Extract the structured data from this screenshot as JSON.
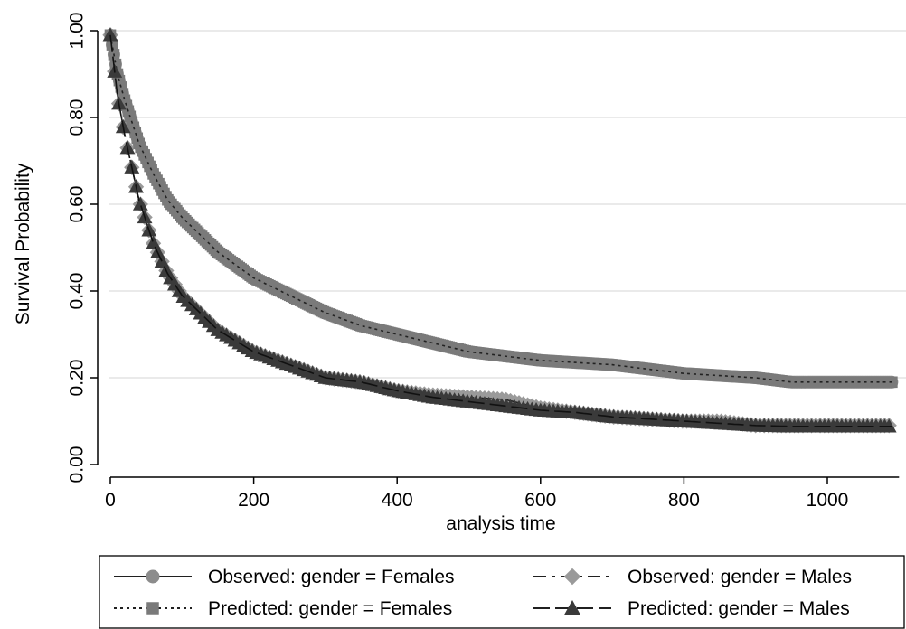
{
  "chart_data": {
    "type": "line",
    "title": "",
    "xlabel": "analysis time",
    "ylabel": "Survival Probability",
    "xlim": [
      0,
      1100
    ],
    "ylim": [
      0,
      1
    ],
    "xticks": [
      0,
      200,
      400,
      600,
      800,
      1000
    ],
    "xtick_labels": [
      "0",
      "200",
      "400",
      "600",
      "800",
      "1000"
    ],
    "yticks": [
      0,
      0.2,
      0.4,
      0.6,
      0.8,
      1.0
    ],
    "ytick_labels": [
      "0.00",
      "0.20",
      "0.40",
      "0.60",
      "0.80",
      "1.00"
    ],
    "grid": "horizontal",
    "legend_position": "bottom",
    "series": [
      {
        "name": "Observed: gender = Females",
        "color": "#8c8c8c",
        "marker": "circle",
        "x": [
          0,
          10,
          20,
          40,
          60,
          80,
          100,
          150,
          200,
          250,
          300,
          350,
          400,
          450,
          500,
          550,
          600,
          650,
          700,
          750,
          800,
          850,
          900,
          950,
          1000,
          1050,
          1100
        ],
        "y": [
          0.99,
          0.9,
          0.84,
          0.74,
          0.67,
          0.61,
          0.57,
          0.49,
          0.43,
          0.39,
          0.35,
          0.32,
          0.3,
          0.28,
          0.26,
          0.25,
          0.24,
          0.235,
          0.23,
          0.22,
          0.21,
          0.205,
          0.2,
          0.19,
          0.19,
          0.19,
          0.19
        ]
      },
      {
        "name": "Observed: gender = Males",
        "color": "#9a9a9a",
        "marker": "diamond",
        "x": [
          0,
          10,
          20,
          40,
          60,
          80,
          100,
          150,
          200,
          250,
          300,
          350,
          400,
          450,
          500,
          550,
          600,
          650,
          700,
          750,
          800,
          850,
          900,
          950,
          1000,
          1050,
          1100
        ],
        "y": [
          0.99,
          0.85,
          0.76,
          0.61,
          0.51,
          0.44,
          0.39,
          0.31,
          0.26,
          0.23,
          0.2,
          0.19,
          0.17,
          0.16,
          0.155,
          0.15,
          0.13,
          0.12,
          0.11,
          0.105,
          0.1,
          0.1,
          0.09,
          0.09,
          0.09,
          0.09,
          0.09
        ]
      },
      {
        "name": "Predicted: gender = Females",
        "color": "#7a7a7a",
        "marker": "square",
        "x": [
          0,
          10,
          20,
          40,
          60,
          80,
          100,
          150,
          200,
          250,
          300,
          350,
          400,
          450,
          500,
          550,
          600,
          650,
          700,
          750,
          800,
          850,
          900,
          950,
          1000,
          1050,
          1100
        ],
        "y": [
          0.99,
          0.9,
          0.84,
          0.74,
          0.67,
          0.61,
          0.57,
          0.49,
          0.43,
          0.39,
          0.35,
          0.32,
          0.3,
          0.28,
          0.26,
          0.25,
          0.24,
          0.235,
          0.23,
          0.22,
          0.21,
          0.205,
          0.2,
          0.19,
          0.19,
          0.19,
          0.19
        ]
      },
      {
        "name": "Predicted: gender = Males",
        "color": "#3a3a3a",
        "marker": "triangle",
        "x": [
          0,
          10,
          20,
          40,
          60,
          80,
          100,
          150,
          200,
          250,
          300,
          350,
          400,
          450,
          500,
          550,
          600,
          650,
          700,
          750,
          800,
          850,
          900,
          950,
          1000,
          1050,
          1100
        ],
        "y": [
          0.99,
          0.85,
          0.76,
          0.61,
          0.51,
          0.44,
          0.39,
          0.31,
          0.26,
          0.23,
          0.2,
          0.19,
          0.17,
          0.155,
          0.145,
          0.135,
          0.125,
          0.12,
          0.11,
          0.105,
          0.1,
          0.095,
          0.09,
          0.088,
          0.088,
          0.088,
          0.088
        ]
      }
    ],
    "legend": {
      "entries": [
        "Observed: gender = Females",
        "Observed: gender = Males",
        "Predicted: gender = Females",
        "Predicted: gender = Males"
      ]
    }
  }
}
